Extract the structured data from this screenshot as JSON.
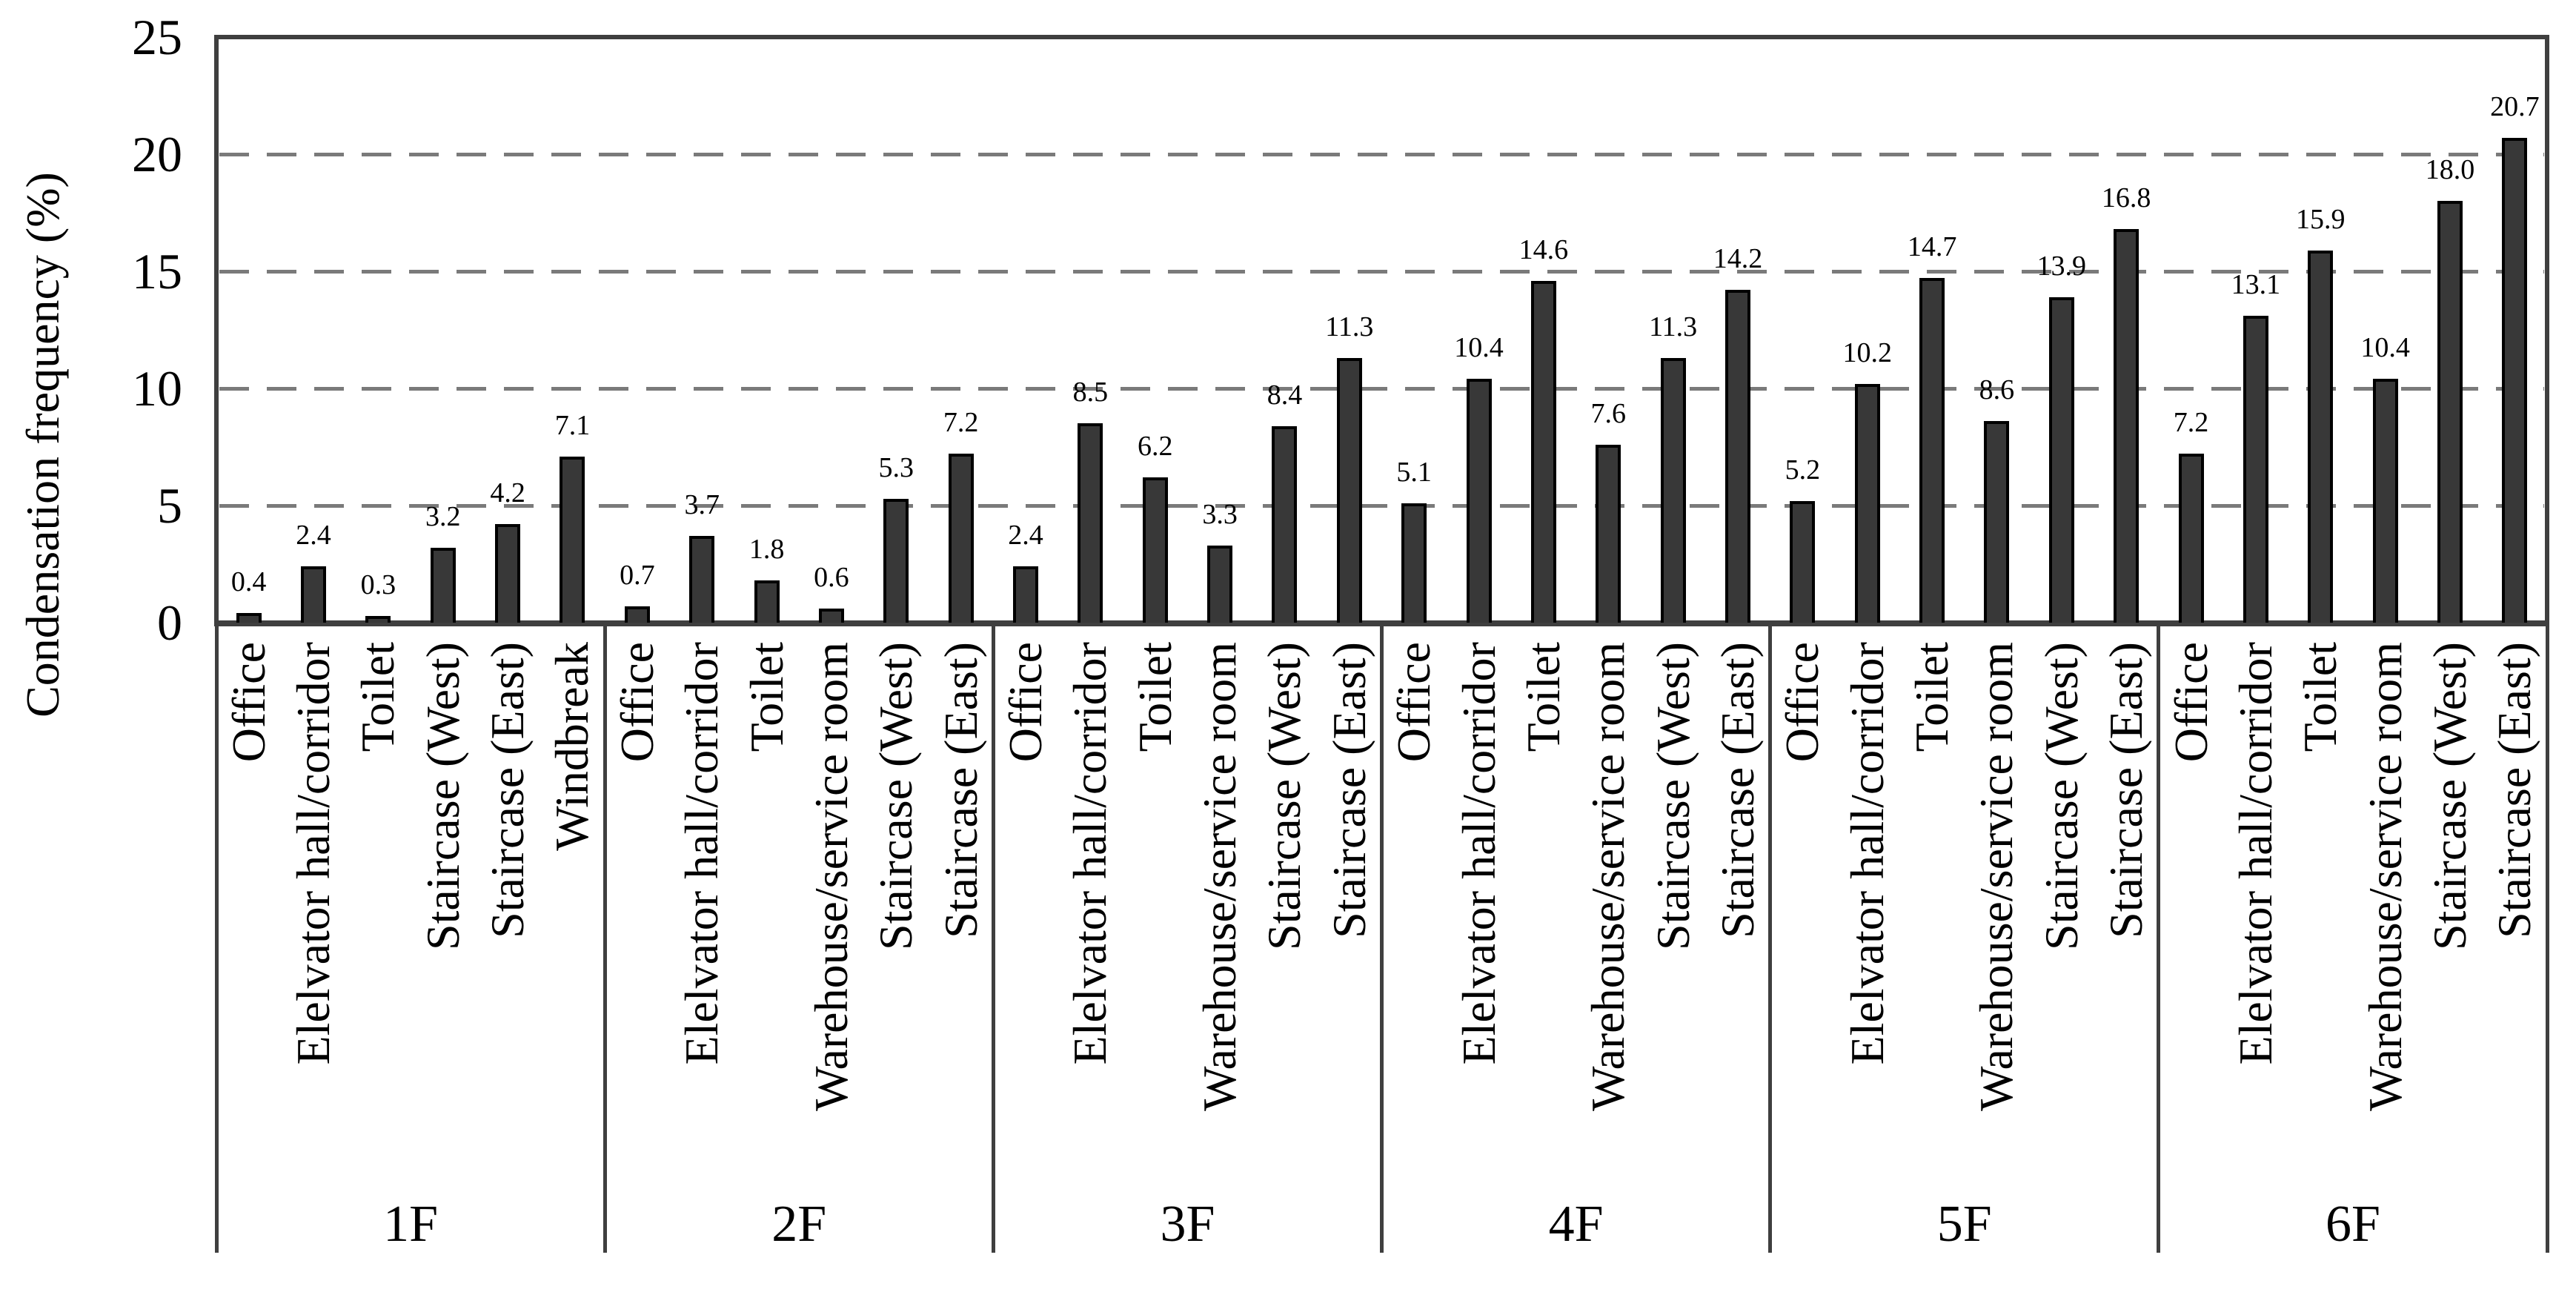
{
  "page": {
    "background": "#ffffff",
    "text_color": "#000000"
  },
  "chart_data": {
    "type": "bar",
    "title": "",
    "xlabel": "",
    "ylabel": "Condensation frequency (%)",
    "ylim": [
      0,
      25
    ],
    "yticks": [
      "0",
      "5",
      "10",
      "15",
      "20",
      "25"
    ],
    "gridlines": {
      "values": [
        5,
        10,
        15,
        20
      ],
      "style": "dashed",
      "color": "#7a7a7a"
    },
    "legend": "none",
    "bar_fill_color": "#383838",
    "bar_border_color": "#000000",
    "axis_color": "#3f3f3f",
    "groups": [
      {
        "floor": "1F",
        "categories": [
          "Office",
          "Elelvator hall/corridor",
          "Toilet",
          "Staircase (West)",
          "Staircase (East)",
          "Windbreak"
        ],
        "values": [
          0.4,
          2.4,
          0.3,
          3.2,
          4.2,
          7.1
        ],
        "labels": [
          "0.4",
          "2.4",
          "0.3",
          "3.2",
          "4.2",
          "7.1"
        ]
      },
      {
        "floor": "2F",
        "categories": [
          "Office",
          "Elelvator hall/corridor",
          "Toilet",
          "Warehouse/service room",
          "Staircase (West)",
          "Staircase (East)"
        ],
        "values": [
          0.7,
          3.7,
          1.8,
          0.6,
          5.3,
          7.2
        ],
        "labels": [
          "0.7",
          "3.7",
          "1.8",
          "0.6",
          "5.3",
          "7.2"
        ]
      },
      {
        "floor": "3F",
        "categories": [
          "Office",
          "Elelvator hall/corridor",
          "Toilet",
          "Warehouse/service room",
          "Staircase (West)",
          "Staircase (East)"
        ],
        "values": [
          2.4,
          8.5,
          6.2,
          3.3,
          8.4,
          11.3
        ],
        "labels": [
          "2.4",
          "8.5",
          "6.2",
          "3.3",
          "8.4",
          "11.3"
        ]
      },
      {
        "floor": "4F",
        "categories": [
          "Office",
          "Elelvator hall/corridor",
          "Toilet",
          "Warehouse/service room",
          "Staircase (West)",
          "Staircase (East)"
        ],
        "values": [
          5.1,
          10.4,
          14.6,
          7.6,
          11.3,
          14.2
        ],
        "labels": [
          "5.1",
          "10.4",
          "14.6",
          "7.6",
          "11.3",
          "14.2"
        ]
      },
      {
        "floor": "5F",
        "categories": [
          "Office",
          "Elelvator hall/corridor",
          "Toilet",
          "Warehouse/service room",
          "Staircase (West)",
          "Staircase (East)"
        ],
        "values": [
          5.2,
          10.2,
          14.7,
          8.6,
          13.9,
          16.8
        ],
        "labels": [
          "5.2",
          "10.2",
          "14.7",
          "8.6",
          "13.9",
          "16.8"
        ]
      },
      {
        "floor": "6F",
        "categories": [
          "Office",
          "Elelvator hall/corridor",
          "Toilet",
          "Warehouse/service room",
          "Staircase (West)",
          "Staircase (East)"
        ],
        "values": [
          7.2,
          13.1,
          15.9,
          10.4,
          18.0,
          20.7
        ],
        "labels": [
          "7.2",
          "13.1",
          "15.9",
          "10.4",
          "18.0",
          "20.7"
        ]
      }
    ]
  }
}
